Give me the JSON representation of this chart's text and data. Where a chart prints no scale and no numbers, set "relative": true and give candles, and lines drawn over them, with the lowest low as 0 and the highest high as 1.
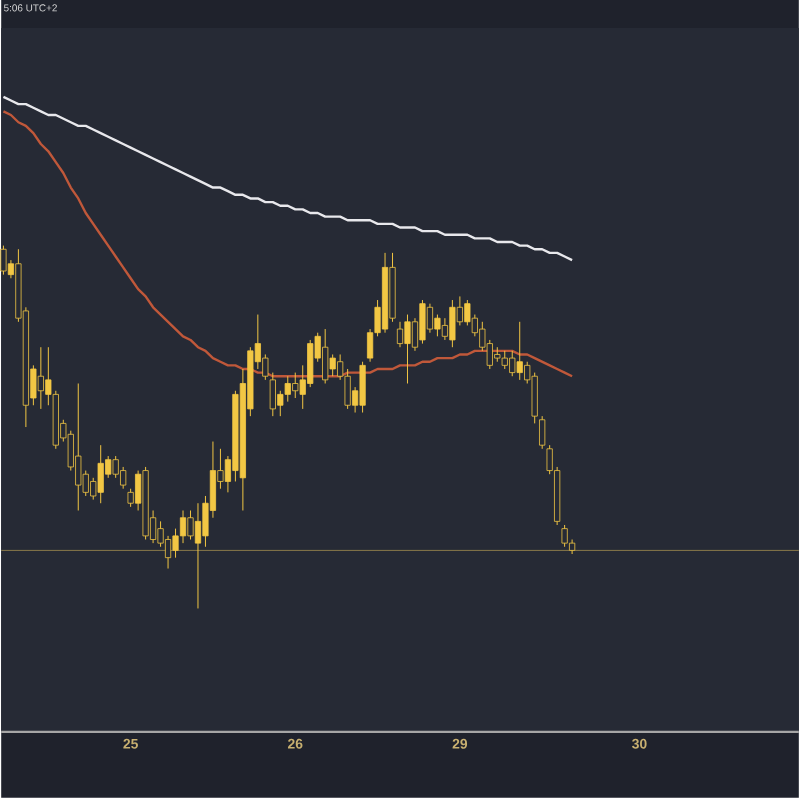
{
  "chart_data": {
    "type": "candlestick",
    "relative": true,
    "annotations": [
      "5:06 UTC+2"
    ],
    "categories": [
      null,
      null,
      null,
      null,
      null,
      null,
      null,
      null,
      null,
      null,
      null,
      null,
      null,
      null,
      null,
      null,
      null,
      "25",
      null,
      null,
      null,
      null,
      null,
      null,
      null,
      null,
      null,
      null,
      null,
      null,
      null,
      null,
      null,
      null,
      null,
      null,
      null,
      null,
      null,
      "26",
      null,
      null,
      null,
      null,
      null,
      null,
      null,
      null,
      null,
      null,
      null,
      null,
      null,
      null,
      null,
      null,
      null,
      null,
      null,
      null,
      null,
      "29",
      null,
      null,
      null,
      null,
      null,
      null,
      null,
      null,
      null,
      null,
      null,
      null,
      null,
      null,
      null,
      null,
      null,
      null,
      null,
      null,
      null,
      null,
      null,
      "30"
    ],
    "ohlc": [
      [
        0.99,
        1.0,
        0.92,
        0.93
      ],
      [
        0.92,
        0.96,
        0.91,
        0.95
      ],
      [
        0.95,
        0.99,
        0.79,
        0.8
      ],
      [
        0.82,
        0.83,
        0.5,
        0.56
      ],
      [
        0.58,
        0.67,
        0.56,
        0.66
      ],
      [
        0.64,
        0.72,
        0.55,
        0.6
      ],
      [
        0.59,
        0.72,
        0.56,
        0.63
      ],
      [
        0.59,
        0.6,
        0.44,
        0.45
      ],
      [
        0.51,
        0.52,
        0.46,
        0.47
      ],
      [
        0.48,
        0.49,
        0.38,
        0.39
      ],
      [
        0.42,
        0.62,
        0.27,
        0.34
      ],
      [
        0.37,
        0.38,
        0.31,
        0.32
      ],
      [
        0.35,
        0.36,
        0.3,
        0.31
      ],
      [
        0.32,
        0.45,
        0.29,
        0.4
      ],
      [
        0.37,
        0.42,
        0.36,
        0.41
      ],
      [
        0.41,
        0.42,
        0.36,
        0.37
      ],
      [
        0.38,
        0.39,
        0.33,
        0.34
      ],
      [
        0.32,
        0.33,
        0.28,
        0.29
      ],
      [
        0.29,
        0.38,
        0.27,
        0.37
      ],
      [
        0.38,
        0.39,
        0.19,
        0.2
      ],
      [
        0.25,
        0.27,
        0.18,
        0.19
      ],
      [
        0.22,
        0.24,
        0.17,
        0.18
      ],
      [
        0.19,
        0.2,
        0.11,
        0.14
      ],
      [
        0.16,
        0.22,
        0.14,
        0.2
      ],
      [
        0.2,
        0.27,
        0.18,
        0.25
      ],
      [
        0.25,
        0.27,
        0.19,
        0.2
      ],
      [
        0.18,
        0.29,
        0,
        0.24
      ],
      [
        0.2,
        0.31,
        0.17,
        0.29
      ],
      [
        0.27,
        0.46,
        0.25,
        0.38
      ],
      [
        0.38,
        0.44,
        0.33,
        0.35
      ],
      [
        0.35,
        0.42,
        0.32,
        0.41
      ],
      [
        0.38,
        0.6,
        0.35,
        0.59
      ],
      [
        0.36,
        0.66,
        0.27,
        0.62
      ],
      [
        0.55,
        0.72,
        0.53,
        0.71
      ],
      [
        0.68,
        0.81,
        0.66,
        0.73
      ],
      [
        0.69,
        0.7,
        0.63,
        0.64
      ],
      [
        0.63,
        0.65,
        0.53,
        0.55
      ],
      [
        0.56,
        0.6,
        0.53,
        0.59
      ],
      [
        0.59,
        0.64,
        0.57,
        0.62
      ],
      [
        0.62,
        0.65,
        0.58,
        0.6
      ],
      [
        0.59,
        0.67,
        0.55,
        0.63
      ],
      [
        0.62,
        0.74,
        0.61,
        0.73
      ],
      [
        0.69,
        0.76,
        0.68,
        0.75
      ],
      [
        0.72,
        0.77,
        0.62,
        0.63
      ],
      [
        0.66,
        0.7,
        0.64,
        0.69
      ],
      [
        0.68,
        0.7,
        0.63,
        0.64
      ],
      [
        0.64,
        0.66,
        0.55,
        0.56
      ],
      [
        0.56,
        0.61,
        0.54,
        0.6
      ],
      [
        0.56,
        0.68,
        0.54,
        0.67
      ],
      [
        0.69,
        0.77,
        0.68,
        0.76
      ],
      [
        0.76,
        0.85,
        0.75,
        0.83
      ],
      [
        0.77,
        0.98,
        0.76,
        0.94
      ],
      [
        0.94,
        0.98,
        0.79,
        0.8
      ],
      [
        0.77,
        0.79,
        0.72,
        0.73
      ],
      [
        0.73,
        0.81,
        0.62,
        0.79
      ],
      [
        0.79,
        0.8,
        0.71,
        0.72
      ],
      [
        0.74,
        0.85,
        0.73,
        0.84
      ],
      [
        0.83,
        0.84,
        0.76,
        0.77
      ],
      [
        0.77,
        0.81,
        0.75,
        0.8
      ],
      [
        0.78,
        0.8,
        0.74,
        0.75
      ],
      [
        0.74,
        0.85,
        0.72,
        0.83
      ],
      [
        0.83,
        0.86,
        0.78,
        0.79
      ],
      [
        0.79,
        0.85,
        0.78,
        0.84
      ],
      [
        0.8,
        0.81,
        0.75,
        0.76
      ],
      [
        0.77,
        0.79,
        0.71,
        0.72
      ],
      [
        0.73,
        0.74,
        0.66,
        0.67
      ],
      [
        0.7,
        0.72,
        0.68,
        0.69
      ],
      [
        0.69,
        0.71,
        0.66,
        0.67
      ],
      [
        0.69,
        0.71,
        0.64,
        0.65
      ],
      [
        0.65,
        0.79,
        0.63,
        0.68
      ],
      [
        0.67,
        0.68,
        0.62,
        0.63
      ],
      [
        0.64,
        0.65,
        0.51,
        0.53
      ],
      [
        0.52,
        0.53,
        0.44,
        0.45
      ],
      [
        0.44,
        0.45,
        0.37,
        0.38
      ],
      [
        0.38,
        0.39,
        0.23,
        0.24
      ],
      [
        0.22,
        0.23,
        0.17,
        0.18
      ],
      [
        0.18,
        0.19,
        0.15,
        0.16
      ],
      null,
      null,
      null,
      null,
      null,
      null,
      null,
      null,
      null
    ],
    "color": "#f2c744",
    "series": [
      {
        "type": "line",
        "color": "#e8e8ec",
        "values": [
          1.41,
          1.4,
          1.39,
          1.39,
          1.38,
          1.37,
          1.36,
          1.36,
          1.35,
          1.34,
          1.33,
          1.33,
          1.32,
          1.31,
          1.3,
          1.29,
          1.28,
          1.27,
          1.26,
          1.25,
          1.24,
          1.23,
          1.22,
          1.21,
          1.2,
          1.19,
          1.18,
          1.17,
          1.16,
          1.16,
          1.15,
          1.14,
          1.14,
          1.13,
          1.13,
          1.12,
          1.12,
          1.11,
          1.11,
          1.1,
          1.1,
          1.09,
          1.09,
          1.08,
          1.08,
          1.08,
          1.07,
          1.07,
          1.07,
          1.07,
          1.06,
          1.06,
          1.06,
          1.05,
          1.05,
          1.05,
          1.04,
          1.04,
          1.04,
          1.03,
          1.03,
          1.03,
          1.03,
          1.02,
          1.02,
          1.02,
          1.01,
          1.01,
          1.01,
          1.0,
          1.0,
          0.99,
          0.99,
          0.98,
          0.98,
          0.97,
          0.96,
          null,
          null,
          null,
          null,
          null,
          null,
          null,
          null,
          null
        ]
      },
      {
        "type": "line",
        "color": "#c0583a",
        "values": [
          1.37,
          1.36,
          1.34,
          1.33,
          1.31,
          1.28,
          1.26,
          1.23,
          1.2,
          1.16,
          1.13,
          1.09,
          1.06,
          1.03,
          1.0,
          0.97,
          0.94,
          0.91,
          0.88,
          0.86,
          0.83,
          0.81,
          0.79,
          0.77,
          0.75,
          0.74,
          0.72,
          0.71,
          0.69,
          0.68,
          0.67,
          0.67,
          0.66,
          0.66,
          0.65,
          0.65,
          0.64,
          0.64,
          0.64,
          0.64,
          0.64,
          0.64,
          0.64,
          0.64,
          0.64,
          0.64,
          0.65,
          0.65,
          0.65,
          0.65,
          0.66,
          0.66,
          0.66,
          0.67,
          0.67,
          0.67,
          0.68,
          0.68,
          0.69,
          0.69,
          0.69,
          0.7,
          0.7,
          0.71,
          0.71,
          0.71,
          0.71,
          0.71,
          0.71,
          0.7,
          0.7,
          0.69,
          0.68,
          0.67,
          0.66,
          0.65,
          0.64,
          null,
          null,
          null,
          null,
          null,
          null,
          null,
          null,
          null
        ]
      }
    ],
    "ref_lines": [
      {
        "axis": "y",
        "value": 0.16,
        "color": "#8a7a4a"
      }
    ],
    "grid": false
  }
}
